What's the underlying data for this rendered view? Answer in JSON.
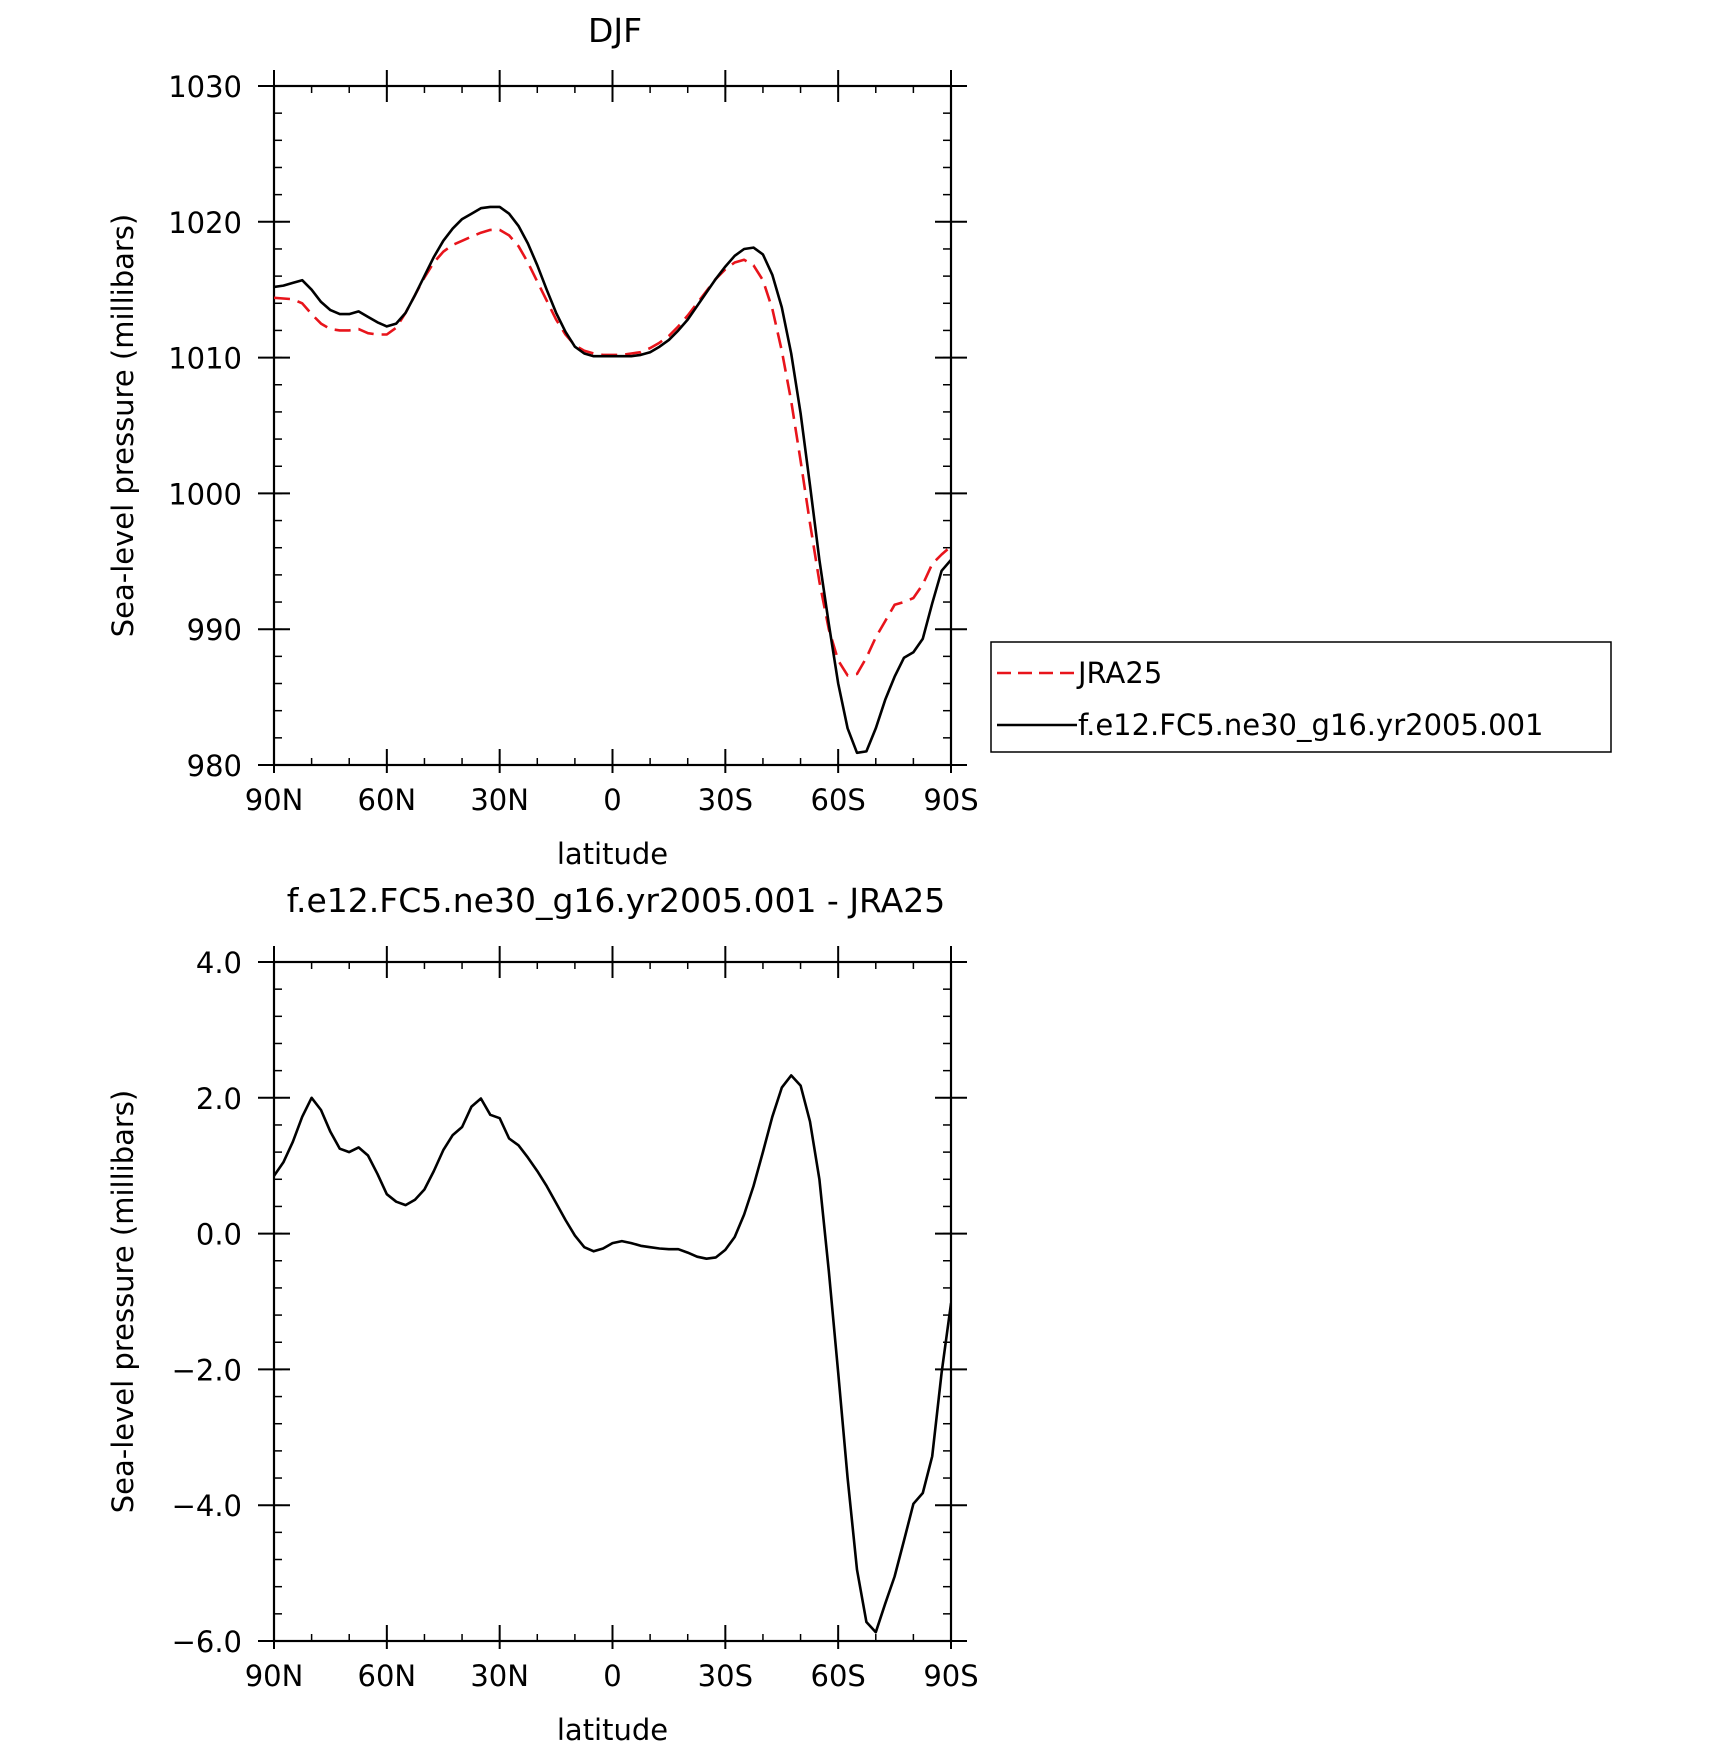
{
  "chart_data": [
    {
      "type": "line",
      "title": "DJF",
      "xlabel": "latitude",
      "ylabel": "Sea-level pressure (millibars)",
      "xlim": [
        90,
        -90
      ],
      "ylim": [
        980,
        1030
      ],
      "x_ticks": [
        {
          "value": 90,
          "label": "90N"
        },
        {
          "value": 60,
          "label": "60N"
        },
        {
          "value": 30,
          "label": "30N"
        },
        {
          "value": 0,
          "label": "0"
        },
        {
          "value": -30,
          "label": "30S"
        },
        {
          "value": -60,
          "label": "60S"
        },
        {
          "value": -90,
          "label": "90S"
        }
      ],
      "y_ticks": [
        {
          "value": 1030,
          "label": "1030"
        },
        {
          "value": 1020,
          "label": "1020"
        },
        {
          "value": 1010,
          "label": "1010"
        },
        {
          "value": 1000,
          "label": "1000"
        },
        {
          "value": 990,
          "label": "990"
        },
        {
          "value": 980,
          "label": "980"
        }
      ],
      "grid": false,
      "legend_position": "right",
      "series": [
        {
          "name": "JRA25",
          "color": "#e8141b",
          "dash": "dashed",
          "points": [
            [
              90,
              1014.4
            ],
            [
              85,
              1014.3
            ],
            [
              82.5,
              1014.0
            ],
            [
              80,
              1013.2
            ],
            [
              77.5,
              1012.5
            ],
            [
              75,
              1012.1
            ],
            [
              72.5,
              1012.0
            ],
            [
              70,
              1012.0
            ],
            [
              67.5,
              1012.1
            ],
            [
              65,
              1011.8
            ],
            [
              62.5,
              1011.7
            ],
            [
              60,
              1011.7
            ],
            [
              57.5,
              1012.2
            ],
            [
              55,
              1013.3
            ],
            [
              52.5,
              1014.6
            ],
            [
              50,
              1015.9
            ],
            [
              47.5,
              1017.0
            ],
            [
              45,
              1017.8
            ],
            [
              42.5,
              1018.3
            ],
            [
              40,
              1018.6
            ],
            [
              37.5,
              1018.9
            ],
            [
              35,
              1019.2
            ],
            [
              32.5,
              1019.4
            ],
            [
              30,
              1019.4
            ],
            [
              27.5,
              1019.0
            ],
            [
              25,
              1018.2
            ],
            [
              22.5,
              1017.0
            ],
            [
              20,
              1015.6
            ],
            [
              17.5,
              1014.2
            ],
            [
              15,
              1012.8
            ],
            [
              12.5,
              1011.7
            ],
            [
              10,
              1010.9
            ],
            [
              7.5,
              1010.5
            ],
            [
              5,
              1010.3
            ],
            [
              2.5,
              1010.2
            ],
            [
              0,
              1010.2
            ],
            [
              -2.5,
              1010.2
            ],
            [
              -5,
              1010.3
            ],
            [
              -7.5,
              1010.4
            ],
            [
              -10,
              1010.7
            ],
            [
              -12.5,
              1011.1
            ],
            [
              -15,
              1011.6
            ],
            [
              -17.5,
              1012.3
            ],
            [
              -20,
              1013.1
            ],
            [
              -22.5,
              1014.0
            ],
            [
              -25,
              1014.9
            ],
            [
              -27.5,
              1015.8
            ],
            [
              -30,
              1016.5
            ],
            [
              -32.5,
              1017.0
            ],
            [
              -35,
              1017.2
            ],
            [
              -37.5,
              1016.8
            ],
            [
              -40,
              1015.7
            ],
            [
              -42.5,
              1013.6
            ],
            [
              -45,
              1010.5
            ],
            [
              -47.5,
              1006.8
            ],
            [
              -50,
              1002.4
            ],
            [
              -52.5,
              997.8
            ],
            [
              -55,
              993.5
            ],
            [
              -57.5,
              990.0
            ],
            [
              -60,
              987.7
            ],
            [
              -62.5,
              986.6
            ],
            [
              -65,
              986.7
            ],
            [
              -67.5,
              987.9
            ],
            [
              -70,
              989.4
            ],
            [
              -72.5,
              990.6
            ],
            [
              -75,
              991.8
            ],
            [
              -77.5,
              992.0
            ],
            [
              -80,
              992.3
            ],
            [
              -82.5,
              993.3
            ],
            [
              -85,
              994.8
            ],
            [
              -87.5,
              995.5
            ],
            [
              -90,
              996.1
            ]
          ]
        },
        {
          "name": "f.e12.FC5.ne30_g16.yr2005.001",
          "color": "#000000",
          "dash": "solid",
          "points": [
            [
              90,
              1015.2
            ],
            [
              87.5,
              1015.3
            ],
            [
              85,
              1015.5
            ],
            [
              82.5,
              1015.7
            ],
            [
              80,
              1015.0
            ],
            [
              77.5,
              1014.1
            ],
            [
              75,
              1013.5
            ],
            [
              72.5,
              1013.2
            ],
            [
              70,
              1013.2
            ],
            [
              67.5,
              1013.4
            ],
            [
              65,
              1013.0
            ],
            [
              62.5,
              1012.6
            ],
            [
              60,
              1012.3
            ],
            [
              57.5,
              1012.5
            ],
            [
              55,
              1013.3
            ],
            [
              52.5,
              1014.6
            ],
            [
              50,
              1016.0
            ],
            [
              47.5,
              1017.4
            ],
            [
              45,
              1018.6
            ],
            [
              42.5,
              1019.5
            ],
            [
              40,
              1020.2
            ],
            [
              37.5,
              1020.6
            ],
            [
              35,
              1021.0
            ],
            [
              32.5,
              1021.1
            ],
            [
              30,
              1021.1
            ],
            [
              27.5,
              1020.6
            ],
            [
              25,
              1019.7
            ],
            [
              22.5,
              1018.4
            ],
            [
              20,
              1016.8
            ],
            [
              17.5,
              1015.0
            ],
            [
              15,
              1013.3
            ],
            [
              12.5,
              1011.9
            ],
            [
              10,
              1010.8
            ],
            [
              7.5,
              1010.3
            ],
            [
              5,
              1010.1
            ],
            [
              2.5,
              1010.1
            ],
            [
              0,
              1010.1
            ],
            [
              -2.5,
              1010.1
            ],
            [
              -5,
              1010.1
            ],
            [
              -7.5,
              1010.2
            ],
            [
              -10,
              1010.4
            ],
            [
              -12.5,
              1010.8
            ],
            [
              -15,
              1011.3
            ],
            [
              -17.5,
              1012.0
            ],
            [
              -20,
              1012.8
            ],
            [
              -22.5,
              1013.8
            ],
            [
              -25,
              1014.8
            ],
            [
              -27.5,
              1015.8
            ],
            [
              -30,
              1016.7
            ],
            [
              -32.5,
              1017.5
            ],
            [
              -35,
              1018.0
            ],
            [
              -37.5,
              1018.1
            ],
            [
              -40,
              1017.6
            ],
            [
              -42.5,
              1016.1
            ],
            [
              -45,
              1013.7
            ],
            [
              -47.5,
              1010.3
            ],
            [
              -50,
              1005.9
            ],
            [
              -52.5,
              1000.6
            ],
            [
              -55,
              995.1
            ],
            [
              -57.5,
              990.4
            ],
            [
              -60,
              986.0
            ],
            [
              -62.5,
              982.7
            ],
            [
              -65,
              980.9
            ],
            [
              -67.5,
              981.0
            ],
            [
              -70,
              982.7
            ],
            [
              -72.5,
              984.8
            ],
            [
              -75,
              986.5
            ],
            [
              -77.5,
              987.9
            ],
            [
              -80,
              988.3
            ],
            [
              -82.5,
              989.3
            ],
            [
              -85,
              991.9
            ],
            [
              -87.5,
              994.3
            ],
            [
              -90,
              995.1
            ]
          ]
        }
      ]
    },
    {
      "type": "line",
      "title": "f.e12.FC5.ne30_g16.yr2005.001 - JRA25",
      "xlabel": "latitude",
      "ylabel": "Sea-level pressure (millibars)",
      "xlim": [
        90,
        -90
      ],
      "ylim": [
        -6.0,
        4.0
      ],
      "x_ticks": [
        {
          "value": 90,
          "label": "90N"
        },
        {
          "value": 60,
          "label": "60N"
        },
        {
          "value": 30,
          "label": "30N"
        },
        {
          "value": 0,
          "label": "0"
        },
        {
          "value": -30,
          "label": "30S"
        },
        {
          "value": -60,
          "label": "60S"
        },
        {
          "value": -90,
          "label": "90S"
        }
      ],
      "y_ticks": [
        {
          "value": 4.0,
          "label": "4.0"
        },
        {
          "value": 2.0,
          "label": "2.0"
        },
        {
          "value": 0.0,
          "label": "0.0"
        },
        {
          "value": -2.0,
          "label": "−2.0"
        },
        {
          "value": -4.0,
          "label": "−4.0"
        },
        {
          "value": -6.0,
          "label": "−6.0"
        }
      ],
      "grid": false,
      "series": [
        {
          "color": "#000000",
          "dash": "solid",
          "points": [
            [
              90,
              0.85
            ],
            [
              87.5,
              1.05
            ],
            [
              85,
              1.35
            ],
            [
              82.5,
              1.72
            ],
            [
              80,
              2.0
            ],
            [
              77.5,
              1.82
            ],
            [
              75,
              1.5
            ],
            [
              72.5,
              1.25
            ],
            [
              70,
              1.2
            ],
            [
              67.5,
              1.27
            ],
            [
              65,
              1.15
            ],
            [
              62.5,
              0.88
            ],
            [
              60,
              0.58
            ],
            [
              57.5,
              0.47
            ],
            [
              55,
              0.42
            ],
            [
              52.5,
              0.5
            ],
            [
              50,
              0.65
            ],
            [
              47.5,
              0.92
            ],
            [
              45,
              1.23
            ],
            [
              42.5,
              1.45
            ],
            [
              40,
              1.57
            ],
            [
              37.5,
              1.87
            ],
            [
              35,
              1.99
            ],
            [
              32.5,
              1.75
            ],
            [
              30,
              1.7
            ],
            [
              27.5,
              1.4
            ],
            [
              25,
              1.3
            ],
            [
              22.5,
              1.12
            ],
            [
              20,
              0.92
            ],
            [
              17.5,
              0.7
            ],
            [
              15,
              0.45
            ],
            [
              12.5,
              0.2
            ],
            [
              10,
              -0.03
            ],
            [
              7.5,
              -0.2
            ],
            [
              5,
              -0.26
            ],
            [
              2.5,
              -0.22
            ],
            [
              0,
              -0.14
            ],
            [
              -2.5,
              -0.11
            ],
            [
              -5,
              -0.14
            ],
            [
              -7.5,
              -0.18
            ],
            [
              -10,
              -0.2
            ],
            [
              -12.5,
              -0.22
            ],
            [
              -15,
              -0.23
            ],
            [
              -17.5,
              -0.23
            ],
            [
              -20,
              -0.28
            ],
            [
              -22.5,
              -0.34
            ],
            [
              -25,
              -0.37
            ],
            [
              -27.5,
              -0.35
            ],
            [
              -30,
              -0.24
            ],
            [
              -32.5,
              -0.05
            ],
            [
              -35,
              0.28
            ],
            [
              -37.5,
              0.7
            ],
            [
              -40,
              1.2
            ],
            [
              -42.5,
              1.72
            ],
            [
              -45,
              2.15
            ],
            [
              -47.5,
              2.33
            ],
            [
              -50,
              2.18
            ],
            [
              -52.5,
              1.65
            ],
            [
              -55,
              0.8
            ],
            [
              -57.5,
              -0.55
            ],
            [
              -60,
              -2.05
            ],
            [
              -62.5,
              -3.6
            ],
            [
              -65,
              -4.95
            ],
            [
              -67.5,
              -5.72
            ],
            [
              -70,
              -5.87
            ],
            [
              -72.5,
              -5.45
            ],
            [
              -75,
              -5.05
            ],
            [
              -77.5,
              -4.52
            ],
            [
              -80,
              -3.98
            ],
            [
              -82.5,
              -3.82
            ],
            [
              -85,
              -3.28
            ],
            [
              -87.5,
              -2.05
            ],
            [
              -90,
              -1.03
            ],
            [
              -92,
              -0.95
            ]
          ]
        }
      ]
    }
  ]
}
